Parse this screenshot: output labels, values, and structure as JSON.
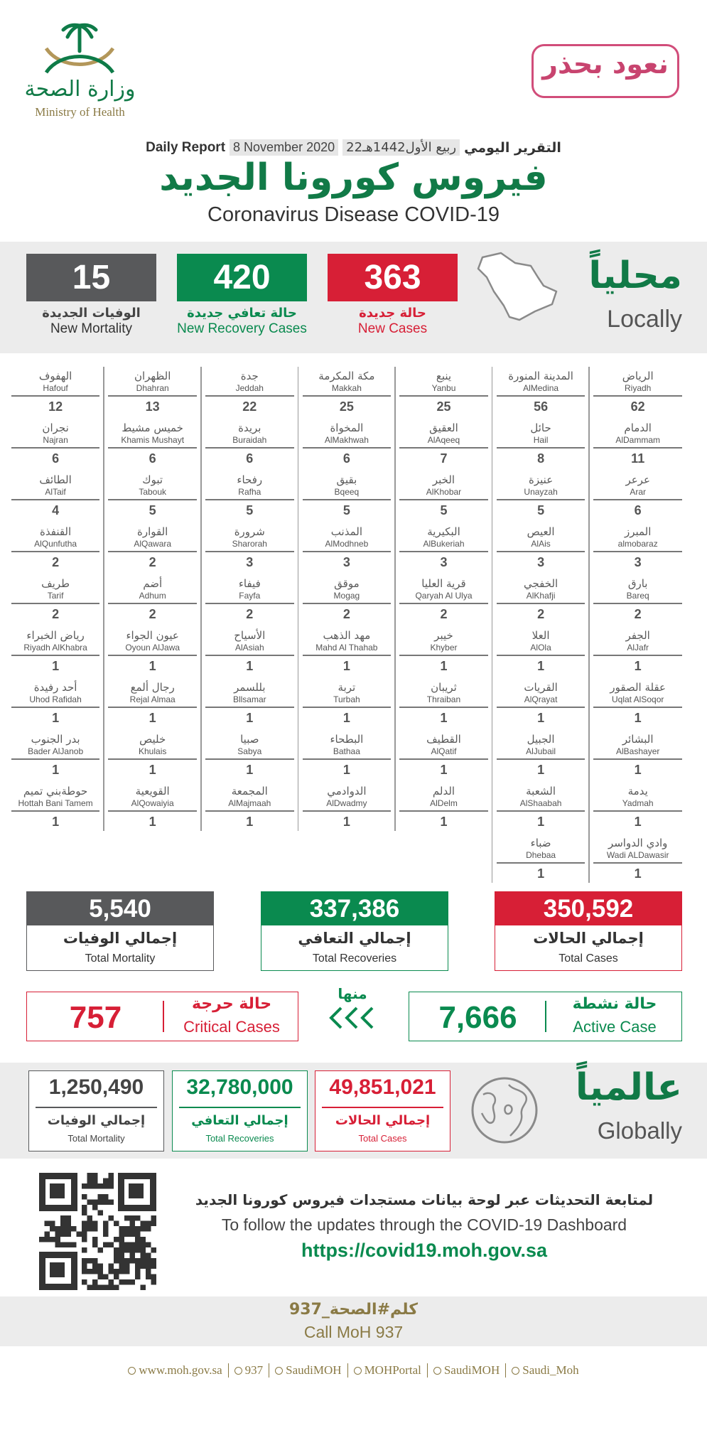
{
  "header": {
    "logo_ar": "وزارة الصحة",
    "logo_en": "Ministry of Health",
    "campaign": "نعود بحذر"
  },
  "report": {
    "label_en": "Daily Report",
    "date": "8 November 2020",
    "hijri": "22ربيع الأول1442هـ",
    "label_ar": "التقرير اليومي",
    "title_ar": "فيروس كورونا الجديد",
    "title_en": "Coronavirus Disease COVID-19"
  },
  "locally": {
    "title_ar": "محلياً",
    "title_en": "Locally",
    "stats": [
      {
        "value": "363",
        "label_ar": "حالة جديدة",
        "label_en": "New Cases"
      },
      {
        "value": "420",
        "label_ar": "حالة تعافي جديدة",
        "label_en": "New Recovery Cases"
      },
      {
        "value": "15",
        "label_ar": "الوفيات الجديدة",
        "label_en": "New Mortality"
      }
    ]
  },
  "cities": [
    [
      {
        "ar": "الرياض",
        "en": "Riyadh",
        "count": 62
      },
      {
        "ar": "الدمام",
        "en": "AlDammam",
        "count": 11
      },
      {
        "ar": "عرعر",
        "en": "Arar",
        "count": 6
      },
      {
        "ar": "المبرز",
        "en": "almobaraz",
        "count": 3
      },
      {
        "ar": "بارق",
        "en": "Bareq",
        "count": 2
      },
      {
        "ar": "الجفر",
        "en": "AlJafr",
        "count": 1
      },
      {
        "ar": "عقلة الصقور",
        "en": "Uqlat AlSoqor",
        "count": 1
      },
      {
        "ar": "البشائر",
        "en": "AlBashayer",
        "count": 1
      },
      {
        "ar": "يدمة",
        "en": "Yadmah",
        "count": 1
      },
      {
        "ar": "وادي الدواسر",
        "en": "Wadi ALDawasir",
        "count": 1
      }
    ],
    [
      {
        "ar": "المدينة المنورة",
        "en": "AlMedina",
        "count": 56
      },
      {
        "ar": "حائل",
        "en": "Hail",
        "count": 8
      },
      {
        "ar": "عنيزة",
        "en": "Unayzah",
        "count": 5
      },
      {
        "ar": "العيص",
        "en": "AlAis",
        "count": 3
      },
      {
        "ar": "الخفجي",
        "en": "AlKhafji",
        "count": 2
      },
      {
        "ar": "العلا",
        "en": "AlOla",
        "count": 1
      },
      {
        "ar": "القريات",
        "en": "AlQrayat",
        "count": 1
      },
      {
        "ar": "الجبيل",
        "en": "AlJubail",
        "count": 1
      },
      {
        "ar": "الشعبة",
        "en": "AlShaabah",
        "count": 1
      },
      {
        "ar": "ضباء",
        "en": "Dhebaa",
        "count": 1
      }
    ],
    [
      {
        "ar": "ينبع",
        "en": "Yanbu",
        "count": 25
      },
      {
        "ar": "العقيق",
        "en": "AlAqeeq",
        "count": 7
      },
      {
        "ar": "الخبر",
        "en": "AlKhobar",
        "count": 5
      },
      {
        "ar": "البكيرية",
        "en": "AlBukeriah",
        "count": 3
      },
      {
        "ar": "قرية العليا",
        "en": "Qaryah Al Ulya",
        "count": 2
      },
      {
        "ar": "خيبر",
        "en": "Khyber",
        "count": 1
      },
      {
        "ar": "ثريبان",
        "en": "Thraiban",
        "count": 1
      },
      {
        "ar": "القطيف",
        "en": "AlQatif",
        "count": 1
      },
      {
        "ar": "الدلم",
        "en": "AlDelm",
        "count": 1
      }
    ],
    [
      {
        "ar": "مكة المكرمة",
        "en": "Makkah",
        "count": 25
      },
      {
        "ar": "المخواة",
        "en": "AlMakhwah",
        "count": 6
      },
      {
        "ar": "بقيق",
        "en": "Bqeeq",
        "count": 5
      },
      {
        "ar": "المذنب",
        "en": "AlModhneb",
        "count": 3
      },
      {
        "ar": "موقق",
        "en": "Mogag",
        "count": 2
      },
      {
        "ar": "مهد الذهب",
        "en": "Mahd Al Thahab",
        "count": 1
      },
      {
        "ar": "تربة",
        "en": "Turbah",
        "count": 1
      },
      {
        "ar": "البطحاء",
        "en": "Bathaa",
        "count": 1
      },
      {
        "ar": "الدوادمي",
        "en": "AlDwadmy",
        "count": 1
      }
    ],
    [
      {
        "ar": "جدة",
        "en": "Jeddah",
        "count": 22
      },
      {
        "ar": "بريدة",
        "en": "Buraidah",
        "count": 6
      },
      {
        "ar": "رفحاء",
        "en": "Rafha",
        "count": 5
      },
      {
        "ar": "شرورة",
        "en": "Sharorah",
        "count": 3
      },
      {
        "ar": "فيفاء",
        "en": "Fayfa",
        "count": 2
      },
      {
        "ar": "الأسياح",
        "en": "AlAsiah",
        "count": 1
      },
      {
        "ar": "بللسمر",
        "en": "Bllsamar",
        "count": 1
      },
      {
        "ar": "صبيا",
        "en": "Sabya",
        "count": 1
      },
      {
        "ar": "المجمعة",
        "en": "AlMajmaah",
        "count": 1
      }
    ],
    [
      {
        "ar": "الظهران",
        "en": "Dhahran",
        "count": 13
      },
      {
        "ar": "خميس مشيط",
        "en": "Khamis Mushayt",
        "count": 6
      },
      {
        "ar": "تبوك",
        "en": "Tabouk",
        "count": 5
      },
      {
        "ar": "القوارة",
        "en": "AlQawara",
        "count": 2
      },
      {
        "ar": "أضم",
        "en": "Adhum",
        "count": 2
      },
      {
        "ar": "عيون الجواء",
        "en": "Oyoun AlJawa",
        "count": 1
      },
      {
        "ar": "رجال ألمع",
        "en": "Rejal Almaa",
        "count": 1
      },
      {
        "ar": "خليص",
        "en": "Khulais",
        "count": 1
      },
      {
        "ar": "القويعية",
        "en": "AlQowaiyia",
        "count": 1
      }
    ],
    [
      {
        "ar": "الهفوف",
        "en": "Hafouf",
        "count": 12
      },
      {
        "ar": "نجران",
        "en": "Najran",
        "count": 6
      },
      {
        "ar": "الطائف",
        "en": "AlTaif",
        "count": 4
      },
      {
        "ar": "القنفذة",
        "en": "AlQunfutha",
        "count": 2
      },
      {
        "ar": "طريف",
        "en": "Tarif",
        "count": 2
      },
      {
        "ar": "رياض الخبراء",
        "en": "Riyadh AlKhabra",
        "count": 1
      },
      {
        "ar": "أحد رفيدة",
        "en": "Uhod Rafidah",
        "count": 1
      },
      {
        "ar": "بدر الجنوب",
        "en": "Bader AlJanob",
        "count": 1
      },
      {
        "ar": "حوطةبني تميم",
        "en": "Hottah Bani Tamem",
        "count": 1
      }
    ]
  ],
  "totals": [
    {
      "value": "350,592",
      "label_ar": "إجمالي الحالات",
      "label_en": "Total Cases"
    },
    {
      "value": "337,386",
      "label_ar": "إجمالي التعافي",
      "label_en": "Total Recoveries"
    },
    {
      "value": "5,540",
      "label_ar": "إجمالي الوفيات",
      "label_en": "Total Mortality"
    }
  ],
  "active": {
    "value": "7,666",
    "label_ar": "حالة نشطة",
    "label_en": "Active Case"
  },
  "of_which": "منها",
  "critical": {
    "value": "757",
    "label_ar": "حالة حرجة",
    "label_en": "Critical Cases"
  },
  "globally": {
    "title_ar": "عالمياً",
    "title_en": "Globally",
    "stats": [
      {
        "value": "49,851,021",
        "label_ar": "إجمالي الحالات",
        "label_en": "Total Cases"
      },
      {
        "value": "32,780,000",
        "label_ar": "إجمالي التعافي",
        "label_en": "Total Recoveries"
      },
      {
        "value": "1,250,490",
        "label_ar": "إجمالي الوفيات",
        "label_en": "Total Mortality"
      }
    ]
  },
  "dashboard": {
    "text_ar": "لمتابعة التحديثات عبر لوحة بيانات مستجدات فيروس كورونا الجديد",
    "text_en": "To follow the updates through the COVID-19 Dashboard",
    "url": "https://covid19.moh.gov.sa"
  },
  "call": {
    "text_ar": "كلم#الصحة_937",
    "text_en": "Call MoH 937"
  },
  "footer": [
    "www.moh.gov.sa",
    "937",
    "SaudiMOH",
    "MOHPortal",
    "SaudiMOH",
    "Saudi_Moh"
  ]
}
